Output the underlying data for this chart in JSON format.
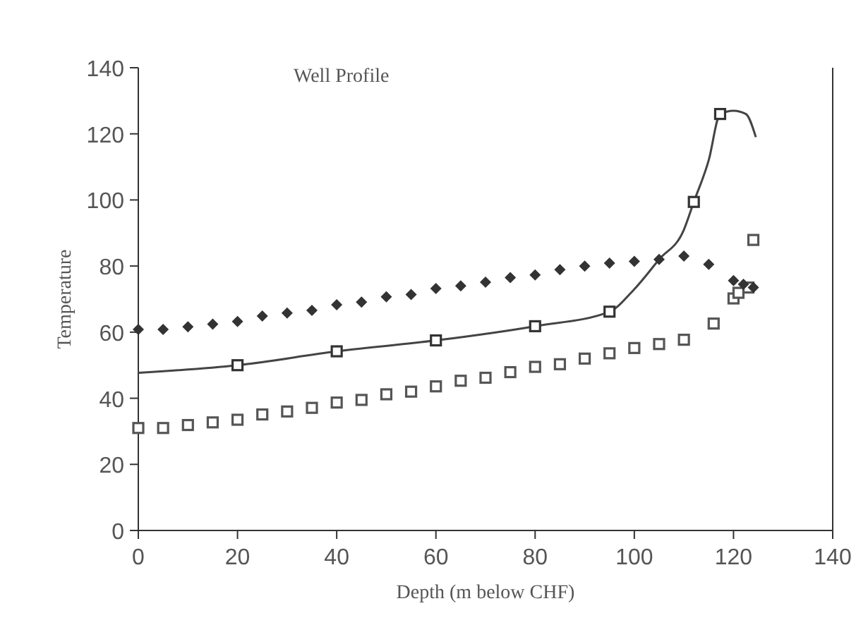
{
  "chart_data": {
    "type": "scatter",
    "title": "Well Profile",
    "xlabel": "Depth (m below CHF)",
    "ylabel": "Temperature",
    "xlim": [
      0,
      140
    ],
    "xticks": [
      0,
      20,
      40,
      60,
      80,
      100,
      120,
      140
    ],
    "ylim": [
      0,
      140
    ],
    "yticks": [
      0,
      20,
      40,
      60,
      80,
      100,
      120,
      140
    ],
    "grid": false,
    "series": [
      {
        "marker": "diamond",
        "color": "#333333",
        "x": [
          0,
          5,
          10,
          15,
          20,
          25,
          30,
          35,
          40,
          45,
          50,
          55,
          60,
          65,
          70,
          75,
          80,
          85,
          90,
          95,
          100,
          105,
          110,
          115,
          120,
          122,
          124
        ],
        "values": [
          60.8,
          60.8,
          61.6,
          62.4,
          63.2,
          64.9,
          65.8,
          66.6,
          68.3,
          69.1,
          70.7,
          71.4,
          73.2,
          74,
          75.1,
          76.5,
          77.3,
          78.9,
          80,
          80.9,
          81.4,
          82,
          83,
          80.5,
          75.6,
          74.5,
          73.5
        ]
      },
      {
        "marker": "square",
        "color": "#555555",
        "x": [
          0,
          5,
          10,
          15,
          20,
          25,
          30,
          35,
          40,
          45,
          50,
          55,
          60,
          65,
          70,
          75,
          80,
          85,
          90,
          95,
          100,
          105,
          110,
          116,
          120,
          121,
          123,
          124
        ],
        "values": [
          31,
          31,
          31.9,
          32.7,
          33.5,
          35.1,
          36,
          37.1,
          38.7,
          39.5,
          41.2,
          42,
          43.6,
          45.3,
          46.2,
          47.9,
          49.5,
          50.3,
          52,
          53.6,
          55.2,
          56.4,
          57.7,
          62.6,
          70.2,
          71.9,
          73.5,
          87.9
        ]
      },
      {
        "marker": "square",
        "color": "#333333",
        "x": [
          20,
          40,
          60,
          80,
          95,
          112,
          117.3
        ],
        "values": [
          50,
          54.2,
          57.5,
          61.8,
          66.2,
          99.4,
          126
        ]
      },
      {
        "type": "line",
        "marker": "none",
        "line_style": "solid",
        "color": "#444444",
        "x": [
          0,
          20,
          40,
          60,
          80,
          95,
          100,
          105,
          110,
          112,
          115,
          117.3,
          120,
          122.5,
          124.5
        ],
        "values": [
          47.7,
          50,
          54.2,
          57.5,
          61.8,
          66.2,
          73,
          82,
          91,
          99.4,
          112,
          126,
          127,
          126,
          119
        ]
      }
    ]
  }
}
